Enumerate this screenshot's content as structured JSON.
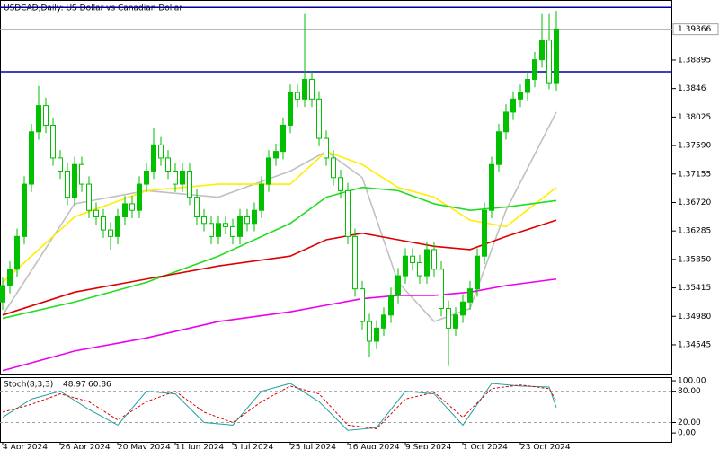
{
  "chart_data": {
    "type": "candlestick",
    "title": "USDCAD,Daily: US Dollar vs Canadian Dollar",
    "xlim": [
      -0.375,
      93.125
    ],
    "xticks": [
      {
        "value": 0,
        "label": "4 Apr 2024"
      },
      {
        "value": 8,
        "label": "26 Apr 2024"
      },
      {
        "value": 16,
        "label": "20 May 2024"
      },
      {
        "value": 24,
        "label": "11 Jun 2024"
      },
      {
        "value": 32,
        "label": "3 Jul 2024"
      },
      {
        "value": 40,
        "label": "25 Jul 2024"
      },
      {
        "value": 48,
        "label": "16 Aug 2024"
      },
      {
        "value": 56,
        "label": "9 Sep 2024"
      },
      {
        "value": 64,
        "label": "1 Oct 2024"
      },
      {
        "value": 72,
        "label": "23 Oct 2024"
      }
    ],
    "ylim": [
      1.34078,
      1.39814
    ],
    "yticks": [
      1.38895,
      1.3846,
      1.38025,
      {
        "value": 1.3759,
        "label": "1.37590"
      },
      1.37155,
      {
        "value": 1.3672,
        "label": "1.36720"
      },
      1.36285,
      {
        "value": 1.3585,
        "label": "1.35850"
      },
      1.35415,
      {
        "value": 1.3498,
        "label": "1.34980"
      },
      1.34545
    ],
    "last_price": 1.39366,
    "hlines": [
      1.397,
      1.38717
    ],
    "hline_color": "#0000a0",
    "candle_color": "#00c000",
    "candles": [
      [
        1.352,
        1.3557,
        1.3508,
        1.3545
      ],
      [
        1.3545,
        1.3582,
        1.3533,
        1.357
      ],
      [
        1.357,
        1.3632,
        1.3558,
        1.362
      ],
      [
        1.362,
        1.3712,
        1.3608,
        1.37
      ],
      [
        1.37,
        1.3792,
        1.3688,
        1.378
      ],
      [
        1.378,
        1.385,
        1.3768,
        1.382
      ],
      [
        1.382,
        1.3832,
        1.3778,
        1.379
      ],
      [
        1.379,
        1.3802,
        1.3728,
        1.374
      ],
      [
        1.374,
        1.3752,
        1.3708,
        1.372
      ],
      [
        1.372,
        1.3732,
        1.3668,
        1.368
      ],
      [
        1.368,
        1.3742,
        1.3668,
        1.373
      ],
      [
        1.373,
        1.3742,
        1.3688,
        1.37
      ],
      [
        1.37,
        1.3712,
        1.3648,
        1.366
      ],
      [
        1.366,
        1.3672,
        1.3638,
        1.365
      ],
      [
        1.365,
        1.3662,
        1.3618,
        1.363
      ],
      [
        1.363,
        1.3642,
        1.36,
        1.362
      ],
      [
        1.362,
        1.3662,
        1.3608,
        1.365
      ],
      [
        1.365,
        1.3682,
        1.3638,
        1.367
      ],
      [
        1.367,
        1.3682,
        1.3648,
        1.366
      ],
      [
        1.366,
        1.3712,
        1.3648,
        1.37
      ],
      [
        1.37,
        1.3732,
        1.3688,
        1.372
      ],
      [
        1.372,
        1.3785,
        1.3708,
        1.376
      ],
      [
        1.376,
        1.3772,
        1.3728,
        1.374
      ],
      [
        1.374,
        1.3752,
        1.3708,
        1.372
      ],
      [
        1.372,
        1.3732,
        1.3688,
        1.37
      ],
      [
        1.37,
        1.3732,
        1.3688,
        1.372
      ],
      [
        1.372,
        1.3732,
        1.3668,
        1.368
      ],
      [
        1.368,
        1.3692,
        1.3638,
        1.365
      ],
      [
        1.365,
        1.3662,
        1.3628,
        1.364
      ],
      [
        1.364,
        1.3652,
        1.3608,
        1.362
      ],
      [
        1.362,
        1.3652,
        1.3608,
        1.364
      ],
      [
        1.364,
        1.3652,
        1.3623,
        1.3635
      ],
      [
        1.3635,
        1.3647,
        1.3608,
        1.362
      ],
      [
        1.362,
        1.3662,
        1.3608,
        1.365
      ],
      [
        1.365,
        1.3662,
        1.3628,
        1.364
      ],
      [
        1.364,
        1.3672,
        1.3628,
        1.366
      ],
      [
        1.366,
        1.3712,
        1.3648,
        1.37
      ],
      [
        1.37,
        1.3752,
        1.3688,
        1.374
      ],
      [
        1.374,
        1.3762,
        1.3728,
        1.375
      ],
      [
        1.375,
        1.3802,
        1.3738,
        1.379
      ],
      [
        1.379,
        1.3852,
        1.3778,
        1.384
      ],
      [
        1.384,
        1.3852,
        1.3818,
        1.383
      ],
      [
        1.383,
        1.396,
        1.3818,
        1.386
      ],
      [
        1.386,
        1.3872,
        1.3818,
        1.383
      ],
      [
        1.383,
        1.3842,
        1.3758,
        1.377
      ],
      [
        1.377,
        1.3782,
        1.3728,
        1.374
      ],
      [
        1.374,
        1.3752,
        1.3698,
        1.371
      ],
      [
        1.371,
        1.3722,
        1.3678,
        1.369
      ],
      [
        1.369,
        1.3702,
        1.3608,
        1.362
      ],
      [
        1.362,
        1.3632,
        1.3528,
        1.354
      ],
      [
        1.354,
        1.3552,
        1.3478,
        1.349
      ],
      [
        1.349,
        1.3502,
        1.3435,
        1.346
      ],
      [
        1.346,
        1.3492,
        1.3448,
        1.348
      ],
      [
        1.348,
        1.3512,
        1.3468,
        1.35
      ],
      [
        1.35,
        1.3542,
        1.3488,
        1.353
      ],
      [
        1.353,
        1.3572,
        1.3518,
        1.356
      ],
      [
        1.356,
        1.3602,
        1.3548,
        1.359
      ],
      [
        1.359,
        1.3602,
        1.3568,
        1.358
      ],
      [
        1.358,
        1.3592,
        1.3548,
        1.356
      ],
      [
        1.356,
        1.3612,
        1.3548,
        1.36
      ],
      [
        1.36,
        1.3612,
        1.3558,
        1.357
      ],
      [
        1.357,
        1.3582,
        1.3498,
        1.351
      ],
      [
        1.351,
        1.3522,
        1.3422,
        1.348
      ],
      [
        1.348,
        1.3512,
        1.3468,
        1.35
      ],
      [
        1.35,
        1.3532,
        1.3488,
        1.352
      ],
      [
        1.352,
        1.3552,
        1.3508,
        1.354
      ],
      [
        1.354,
        1.3602,
        1.3528,
        1.359
      ],
      [
        1.359,
        1.3672,
        1.3578,
        1.366
      ],
      [
        1.366,
        1.3742,
        1.3648,
        1.373
      ],
      [
        1.373,
        1.3792,
        1.3718,
        1.378
      ],
      [
        1.378,
        1.3822,
        1.3768,
        1.381
      ],
      [
        1.381,
        1.3842,
        1.3798,
        1.383
      ],
      [
        1.383,
        1.3852,
        1.3818,
        1.384
      ],
      [
        1.384,
        1.3872,
        1.3828,
        1.386
      ],
      [
        1.386,
        1.3902,
        1.3848,
        1.389
      ],
      [
        1.389,
        1.396,
        1.3878,
        1.392
      ],
      [
        1.392,
        1.396,
        1.3845,
        1.3855
      ],
      [
        1.3855,
        1.3965,
        1.3843,
        1.3937
      ]
    ],
    "ma_x": [
      0,
      10,
      20,
      30,
      40,
      45,
      50,
      55,
      60,
      65,
      70,
      77
    ],
    "moving_averages": [
      {
        "color": "#c0c0c0",
        "values": [
          1.35,
          1.367,
          1.369,
          1.368,
          1.372,
          1.375,
          1.371,
          1.355,
          1.349,
          1.351,
          1.366,
          1.381
        ]
      },
      {
        "color": "#ffee00",
        "values": [
          1.355,
          1.365,
          1.369,
          1.37,
          1.37,
          1.375,
          1.373,
          1.3695,
          1.368,
          1.3645,
          1.3635,
          1.3695
        ]
      },
      {
        "color": "#22dd22",
        "values": [
          1.3495,
          1.352,
          1.355,
          1.359,
          1.364,
          1.368,
          1.3695,
          1.369,
          1.367,
          1.366,
          1.3665,
          1.3675
        ]
      },
      {
        "color": "#dd0000",
        "values": [
          1.35,
          1.3535,
          1.3555,
          1.3575,
          1.359,
          1.3615,
          1.3625,
          1.3615,
          1.3605,
          1.36,
          1.362,
          1.3645
        ]
      },
      {
        "color": "#ee00ee",
        "values": [
          1.3415,
          1.3445,
          1.3465,
          1.349,
          1.3505,
          1.3515,
          1.3525,
          1.353,
          1.353,
          1.3535,
          1.3545,
          1.3555
        ]
      }
    ],
    "stoch": {
      "name": "Stoch(8,3,3)",
      "ylim": [
        -17,
        107
      ],
      "yticks": [
        {
          "value": 100,
          "label": "100.00"
        },
        {
          "value": 80,
          "label": "80.00"
        },
        {
          "value": 20,
          "label": "20.00"
        },
        {
          "value": 0,
          "label": "0.00"
        }
      ],
      "levels": [
        80,
        20
      ],
      "x": [
        0,
        4,
        8,
        12,
        16,
        20,
        24,
        28,
        32,
        36,
        40,
        44,
        48,
        52,
        56,
        60,
        64,
        68,
        72,
        76,
        77
      ],
      "series": [
        {
          "color": "#20a0a0",
          "values": [
            30,
            65,
            80,
            45,
            15,
            80,
            75,
            20,
            15,
            80,
            95,
            60,
            5,
            10,
            80,
            75,
            15,
            95,
            90,
            88,
            48.97
          ]
        },
        {
          "color": "#dd0000",
          "values": [
            40,
            55,
            75,
            60,
            25,
            60,
            80,
            40,
            20,
            60,
            90,
            75,
            15,
            8,
            65,
            78,
            30,
            85,
            92,
            85,
            60.86
          ]
        }
      ]
    }
  }
}
